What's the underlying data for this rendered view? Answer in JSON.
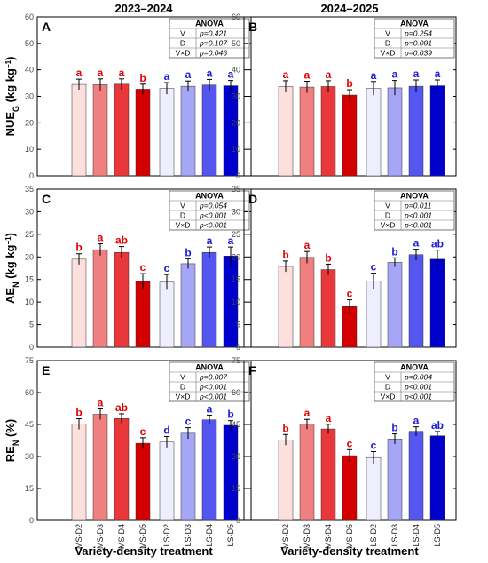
{
  "figure": {
    "col_titles": [
      "2023–2024",
      "2024–2025"
    ],
    "xlabel": "Variety-density treatment",
    "row_ylabels": [
      {
        "main": "NUE",
        "sub": "G",
        "unit": " (kg kg",
        "sup": "−1",
        "close": ")"
      },
      {
        "main": "AE",
        "sub": "N",
        "unit": " (kg kg",
        "sup": "−1",
        "close": ")"
      },
      {
        "main": "RE",
        "sub": "N",
        "unit": " (%)",
        "sup": "",
        "close": ""
      }
    ]
  },
  "chart_data": [
    {
      "type": "bar",
      "panel": "A",
      "row": 0,
      "col": 0,
      "categories": [
        "MS-D2",
        "MS-D3",
        "MS-D4",
        "MS-D5",
        "LS-D2",
        "LS-D3",
        "LS-D4",
        "LS-D5"
      ],
      "values": [
        34.5,
        34.4,
        34.6,
        32.7,
        33.0,
        33.8,
        34.3,
        34.0
      ],
      "errors": [
        2.0,
        2.2,
        2.0,
        1.9,
        2.2,
        2.0,
        2.1,
        2.0
      ],
      "letters": [
        "a",
        "a",
        "a",
        "b",
        "a",
        "a",
        "a",
        "a"
      ],
      "ylim": [
        0,
        60
      ],
      "yticks": [
        0,
        10,
        20,
        30,
        40,
        50,
        60
      ],
      "anova": {
        "title": "ANOVA",
        "rows": [
          {
            "factor": "V",
            "p": "p=0.421"
          },
          {
            "factor": "D",
            "p": "p=0.107"
          },
          {
            "factor": "V×D",
            "p": "p=0.046"
          }
        ]
      }
    },
    {
      "type": "bar",
      "panel": "B",
      "row": 0,
      "col": 1,
      "categories": [
        "MS-D2",
        "MS-D3",
        "MS-D4",
        "MS-D5",
        "LS-D2",
        "LS-D3",
        "LS-D4",
        "LS-D5"
      ],
      "values": [
        33.7,
        33.5,
        33.7,
        30.5,
        33.0,
        33.2,
        33.8,
        34.0
      ],
      "errors": [
        2.2,
        2.2,
        2.2,
        2.0,
        2.6,
        2.8,
        2.4,
        2.2
      ],
      "letters": [
        "a",
        "a",
        "a",
        "b",
        "a",
        "a",
        "a",
        "a"
      ],
      "ylim": [
        0,
        60
      ],
      "yticks": [
        0,
        10,
        20,
        30,
        40,
        50,
        60
      ],
      "anova": {
        "title": "ANOVA",
        "rows": [
          {
            "factor": "V",
            "p": "p=0.254"
          },
          {
            "factor": "D",
            "p": "p=0.091"
          },
          {
            "factor": "V×D",
            "p": "p=0.039"
          }
        ]
      }
    },
    {
      "type": "bar",
      "panel": "C",
      "row": 1,
      "col": 0,
      "categories": [
        "MS-D2",
        "MS-D3",
        "MS-D4",
        "MS-D5",
        "LS-D2",
        "LS-D3",
        "LS-D4",
        "LS-D5"
      ],
      "values": [
        19.5,
        21.6,
        21.0,
        14.5,
        14.4,
        18.5,
        21.0,
        20.2
      ],
      "errors": [
        1.2,
        1.3,
        1.3,
        1.8,
        1.7,
        1.1,
        1.2,
        2.0
      ],
      "letters": [
        "b",
        "a",
        "ab",
        "c",
        "c",
        "b",
        "a",
        "a"
      ],
      "ylim": [
        0,
        35
      ],
      "yticks": [
        0,
        5,
        10,
        15,
        20,
        25,
        30,
        35
      ],
      "anova": {
        "title": "ANOVA",
        "rows": [
          {
            "factor": "V",
            "p": "p=0.054"
          },
          {
            "factor": "D",
            "p": "p<0.001"
          },
          {
            "factor": "V×D",
            "p": "p<0.001"
          }
        ]
      }
    },
    {
      "type": "bar",
      "panel": "D",
      "row": 1,
      "col": 1,
      "categories": [
        "MS-D2",
        "MS-D3",
        "MS-D4",
        "MS-D5",
        "LS-D2",
        "LS-D3",
        "LS-D4",
        "LS-D5"
      ],
      "values": [
        17.9,
        19.9,
        17.2,
        9.0,
        14.6,
        18.8,
        20.5,
        19.5
      ],
      "errors": [
        1.2,
        1.3,
        1.2,
        1.5,
        1.8,
        1.0,
        1.2,
        2.0
      ],
      "letters": [
        "b",
        "a",
        "b",
        "c",
        "c",
        "b",
        "a",
        "ab"
      ],
      "ylim": [
        0,
        35
      ],
      "yticks": [
        0,
        5,
        10,
        15,
        20,
        25,
        30,
        35
      ],
      "anova": {
        "title": "ANOVA",
        "rows": [
          {
            "factor": "V",
            "p": "p=0.011"
          },
          {
            "factor": "D",
            "p": "p<0.001"
          },
          {
            "factor": "V×D",
            "p": "p<0.001"
          }
        ]
      }
    },
    {
      "type": "bar",
      "panel": "E",
      "row": 2,
      "col": 0,
      "categories": [
        "MS-D2",
        "MS-D3",
        "MS-D4",
        "MS-D5",
        "LS-D2",
        "LS-D3",
        "LS-D4",
        "LS-D5"
      ],
      "values": [
        45.2,
        49.8,
        47.8,
        36.2,
        36.8,
        40.9,
        47.2,
        44.6
      ],
      "errors": [
        2.5,
        2.5,
        2.2,
        2.6,
        2.6,
        2.6,
        2.2,
        2.2
      ],
      "letters": [
        "b",
        "a",
        "ab",
        "c",
        "d",
        "c",
        "a",
        "b"
      ],
      "ylim": [
        0,
        75
      ],
      "yticks": [
        0,
        15,
        30,
        45,
        60,
        75
      ],
      "anova": {
        "title": "ANOVA",
        "rows": [
          {
            "factor": "V",
            "p": "p=0.007"
          },
          {
            "factor": "D",
            "p": "p<0.001"
          },
          {
            "factor": "V×D",
            "p": "p<0.001"
          }
        ]
      }
    },
    {
      "type": "bar",
      "panel": "F",
      "row": 2,
      "col": 1,
      "categories": [
        "MS-D2",
        "MS-D3",
        "MS-D4",
        "MS-D5",
        "LS-D2",
        "LS-D3",
        "LS-D4",
        "LS-D5"
      ],
      "values": [
        37.8,
        45.1,
        42.9,
        30.4,
        29.5,
        38.2,
        41.8,
        39.7
      ],
      "errors": [
        2.5,
        2.3,
        2.2,
        2.8,
        2.8,
        2.4,
        2.1,
        2.0
      ],
      "letters": [
        "b",
        "a",
        "a",
        "c",
        "c",
        "b",
        "a",
        "ab"
      ],
      "ylim": [
        0,
        75
      ],
      "yticks": [
        0,
        15,
        30,
        45,
        60,
        75
      ],
      "anova": {
        "title": "ANOVA",
        "rows": [
          {
            "factor": "V",
            "p": "p=0.004"
          },
          {
            "factor": "D",
            "p": "p<0.001"
          },
          {
            "factor": "V×D",
            "p": "p<0.001"
          }
        ]
      }
    }
  ],
  "colors": {
    "bars": [
      "#fde0de",
      "#f08080",
      "#e8383a",
      "#d40000",
      "#eeeeff",
      "#a6a6f6",
      "#5555f0",
      "#0000cc"
    ],
    "letters": [
      "#e00000",
      "#e00000",
      "#e00000",
      "#e00000",
      "#1a1ad0",
      "#1a1ad0",
      "#1a1ad0",
      "#1a1ad0"
    ]
  }
}
